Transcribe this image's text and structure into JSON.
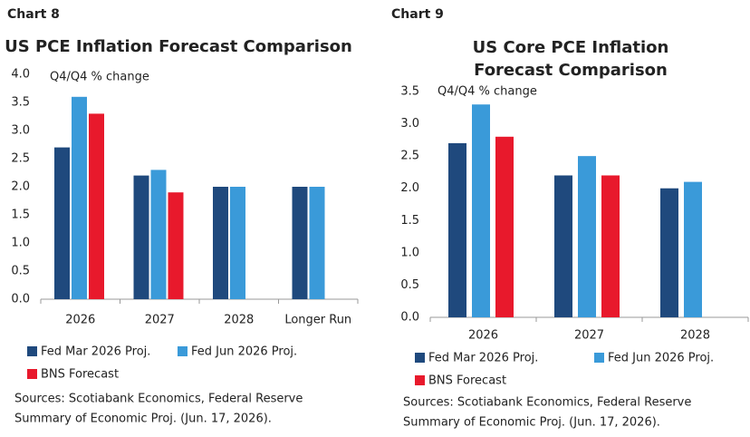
{
  "chart_data": [
    {
      "type": "bar",
      "label": "Chart 8",
      "title": [
        "US PCE Inflation Forecast Comparison"
      ],
      "subtitle": "Q4/Q4 % change",
      "categories": [
        "2026",
        "2027",
        "2028",
        "Longer Run"
      ],
      "series": [
        {
          "name": "Fed Mar 2026 Proj.",
          "color": "#1f497d",
          "values": [
            2.7,
            2.2,
            2.0,
            2.0
          ]
        },
        {
          "name": "Fed Jun 2026 Proj.",
          "color": "#3a9ad9",
          "values": [
            3.6,
            2.3,
            2.0,
            2.0
          ]
        },
        {
          "name": "BNS Forecast",
          "color": "#e8192c",
          "values": [
            3.3,
            1.9,
            null,
            null
          ]
        }
      ],
      "ylim": [
        0,
        4
      ],
      "yticks": [
        {
          "value": 0,
          "label": "0.0"
        },
        0.5,
        {
          "value": 1,
          "label": "1.0"
        },
        1.5,
        {
          "value": 2,
          "label": "2.0"
        },
        2.5,
        {
          "value": 3,
          "label": "3.0"
        },
        3.5,
        {
          "value": 4,
          "label": "4.0"
        }
      ],
      "source": [
        "Sources: Scotiabank Economics, Federal Reserve",
        "Summary of Economic Proj. (Jun. 17, 2026)."
      ]
    },
    {
      "type": "bar",
      "label": "Chart 9",
      "title": [
        "US Core PCE Inflation",
        "Forecast Comparison"
      ],
      "subtitle": "Q4/Q4 % change",
      "categories": [
        "2026",
        "2027",
        "2028"
      ],
      "series": [
        {
          "name": "Fed Mar 2026 Proj.",
          "color": "#1f497d",
          "values": [
            2.7,
            2.2,
            2.0
          ]
        },
        {
          "name": "Fed Jun 2026 Proj.",
          "color": "#3a9ad9",
          "values": [
            3.3,
            2.5,
            2.1
          ]
        },
        {
          "name": "BNS Forecast",
          "color": "#e8192c",
          "values": [
            2.8,
            2.2,
            null
          ]
        }
      ],
      "ylim": [
        0,
        3.5
      ],
      "yticks": [
        {
          "value": 0,
          "label": "0.0"
        },
        0.5,
        {
          "value": 1,
          "label": "1.0"
        },
        1.5,
        {
          "value": 2,
          "label": "2.0"
        },
        2.5,
        {
          "value": 3,
          "label": "3.0"
        },
        3.5
      ],
      "source": [
        "Sources: Scotiabank Economics, Federal Reserve",
        "Summary of Economic Proj. (Jun. 17, 2026)."
      ]
    }
  ]
}
